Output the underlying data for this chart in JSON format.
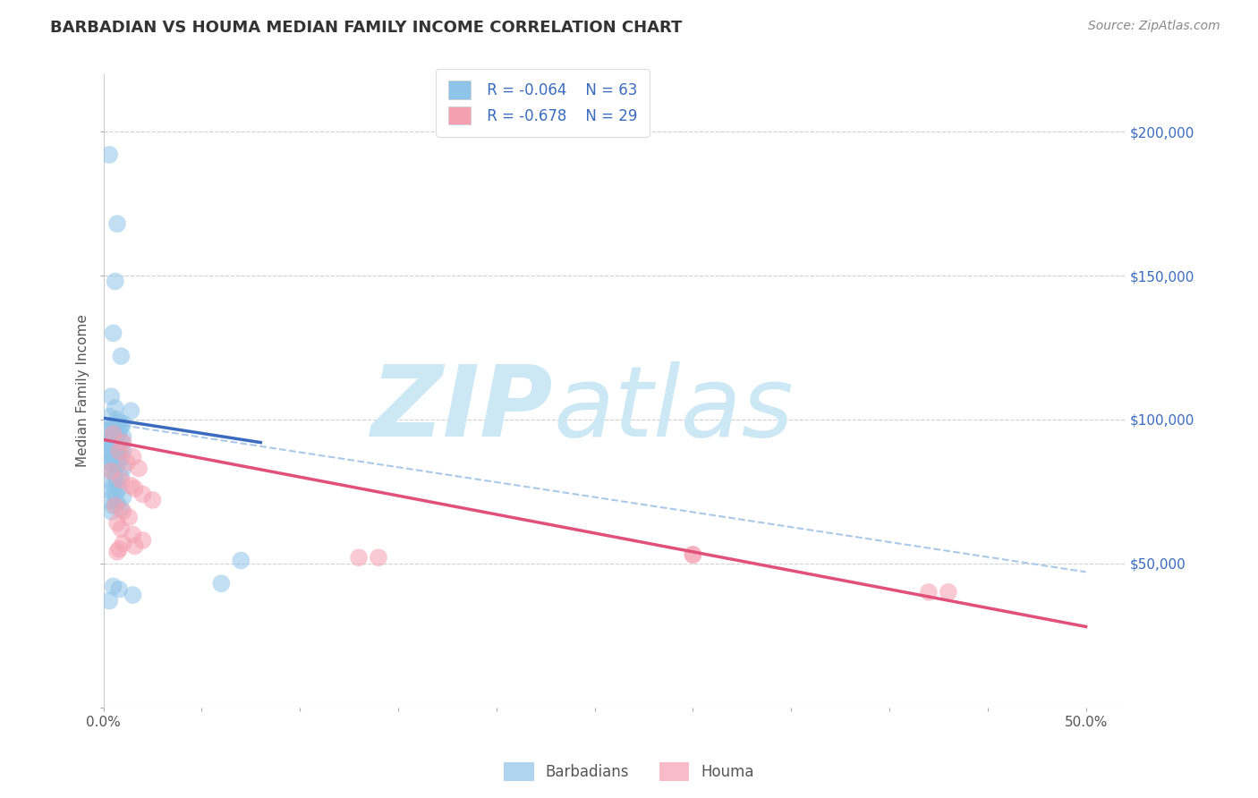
{
  "title": "BARBADIAN VS HOUMA MEDIAN FAMILY INCOME CORRELATION CHART",
  "source_text": "Source: ZipAtlas.com",
  "ylabel": "Median Family Income",
  "xlim": [
    0.0,
    0.52
  ],
  "ylim": [
    0,
    220000
  ],
  "xticks": [
    0.0,
    0.05,
    0.1,
    0.15,
    0.2,
    0.25,
    0.3,
    0.35,
    0.4,
    0.45,
    0.5
  ],
  "xticklabels": [
    "0.0%",
    "",
    "",
    "",
    "",
    "",
    "",
    "",
    "",
    "",
    "50.0%"
  ],
  "yticks": [
    0,
    50000,
    100000,
    150000,
    200000
  ],
  "yticklabels": [
    "",
    "$50,000",
    "$100,000",
    "$150,000",
    "$200,000"
  ],
  "background_color": "#ffffff",
  "grid_color": "#d0d0d0",
  "watermark_text": "ZIP",
  "watermark_text2": "atlas",
  "watermark_color": "#cde8f5",
  "legend_R1": "R = -0.064",
  "legend_N1": "N = 63",
  "legend_R2": "R = -0.678",
  "legend_N2": "N = 29",
  "blue_color": "#8ec4e8",
  "pink_color": "#f5a0b0",
  "blue_line_color": "#3a6bbf",
  "pink_line_color": "#e0507a",
  "dashed_line_color": "#aac8e8",
  "legend_text_color": "#3a6bbf",
  "title_color": "#333333",
  "source_color": "#888888",
  "blue_scatter": [
    [
      0.003,
      192000
    ],
    [
      0.007,
      168000
    ],
    [
      0.006,
      148000
    ],
    [
      0.005,
      130000
    ],
    [
      0.009,
      122000
    ],
    [
      0.004,
      108000
    ],
    [
      0.006,
      104000
    ],
    [
      0.014,
      103000
    ],
    [
      0.003,
      101000
    ],
    [
      0.007,
      100000
    ],
    [
      0.008,
      99000
    ],
    [
      0.01,
      98500
    ],
    [
      0.005,
      98000
    ],
    [
      0.009,
      97500
    ],
    [
      0.004,
      97000
    ],
    [
      0.006,
      96500
    ],
    [
      0.008,
      96000
    ],
    [
      0.003,
      95500
    ],
    [
      0.007,
      95000
    ],
    [
      0.005,
      94500
    ],
    [
      0.01,
      94000
    ],
    [
      0.004,
      93500
    ],
    [
      0.006,
      93000
    ],
    [
      0.009,
      92500
    ],
    [
      0.003,
      92000
    ],
    [
      0.007,
      91500
    ],
    [
      0.005,
      91000
    ],
    [
      0.008,
      90500
    ],
    [
      0.004,
      90000
    ],
    [
      0.006,
      89500
    ],
    [
      0.01,
      89000
    ],
    [
      0.003,
      88500
    ],
    [
      0.007,
      88000
    ],
    [
      0.005,
      87500
    ],
    [
      0.009,
      87000
    ],
    [
      0.004,
      86500
    ],
    [
      0.006,
      86000
    ],
    [
      0.008,
      85500
    ],
    [
      0.003,
      85000
    ],
    [
      0.007,
      84500
    ],
    [
      0.005,
      84000
    ],
    [
      0.01,
      83000
    ],
    [
      0.004,
      82000
    ],
    [
      0.006,
      81000
    ],
    [
      0.009,
      80000
    ],
    [
      0.003,
      79000
    ],
    [
      0.007,
      78000
    ],
    [
      0.005,
      77000
    ],
    [
      0.008,
      76000
    ],
    [
      0.004,
      75000
    ],
    [
      0.006,
      74000
    ],
    [
      0.01,
      73000
    ],
    [
      0.003,
      72000
    ],
    [
      0.007,
      71000
    ],
    [
      0.005,
      70000
    ],
    [
      0.009,
      69000
    ],
    [
      0.004,
      68000
    ],
    [
      0.07,
      51000
    ],
    [
      0.06,
      43000
    ],
    [
      0.005,
      42000
    ],
    [
      0.008,
      41000
    ],
    [
      0.015,
      39000
    ],
    [
      0.003,
      37000
    ]
  ],
  "pink_scatter": [
    [
      0.005,
      95000
    ],
    [
      0.01,
      92000
    ],
    [
      0.008,
      89000
    ],
    [
      0.015,
      87000
    ],
    [
      0.012,
      85000
    ],
    [
      0.018,
      83000
    ],
    [
      0.004,
      82000
    ],
    [
      0.009,
      79000
    ],
    [
      0.014,
      77000
    ],
    [
      0.016,
      76000
    ],
    [
      0.02,
      74000
    ],
    [
      0.025,
      72000
    ],
    [
      0.006,
      70000
    ],
    [
      0.01,
      68000
    ],
    [
      0.013,
      66000
    ],
    [
      0.007,
      64000
    ],
    [
      0.009,
      62000
    ],
    [
      0.015,
      60000
    ],
    [
      0.02,
      58000
    ],
    [
      0.01,
      57000
    ],
    [
      0.016,
      56000
    ],
    [
      0.008,
      55000
    ],
    [
      0.007,
      54000
    ],
    [
      0.13,
      52000
    ],
    [
      0.14,
      52000
    ],
    [
      0.42,
      40000
    ],
    [
      0.43,
      40000
    ],
    [
      0.3,
      53000
    ],
    [
      0.3,
      53000
    ]
  ],
  "blue_line_x": [
    0.0,
    0.08
  ],
  "blue_line_y": [
    100500,
    92000
  ],
  "pink_line_x": [
    0.0,
    0.5
  ],
  "pink_line_y": [
    93000,
    28000
  ],
  "dashed_line_x": [
    0.0,
    0.5
  ],
  "dashed_line_y": [
    99000,
    47000
  ]
}
